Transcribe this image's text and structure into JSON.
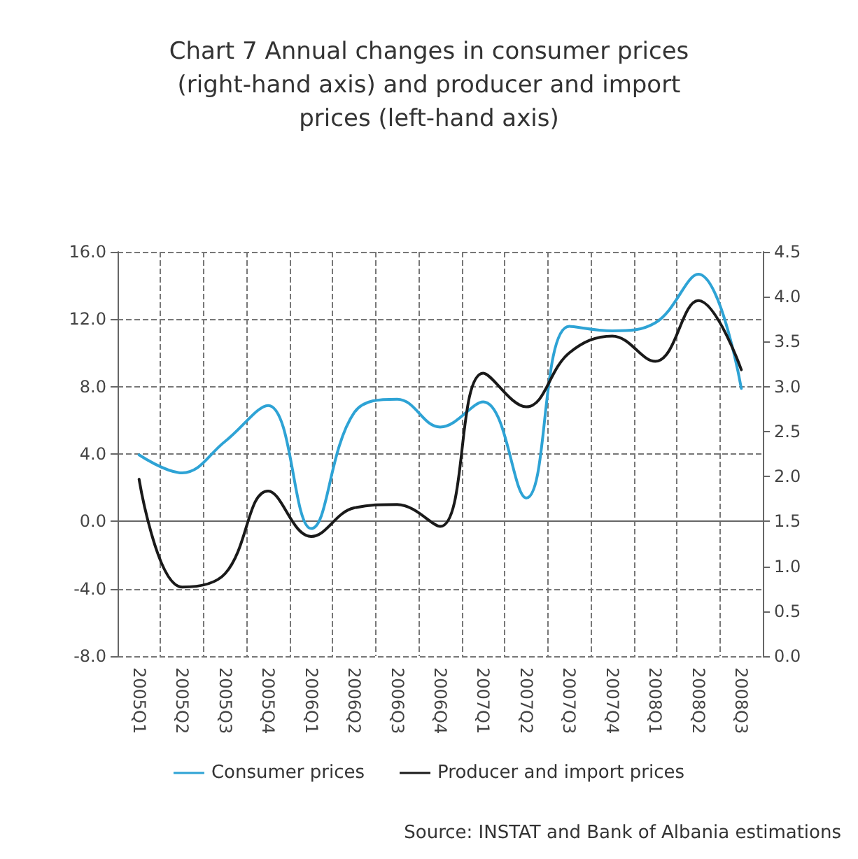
{
  "chart_data": {
    "type": "line",
    "title": "Chart 7 Annual changes in consumer prices\n(right-hand axis) and producer and import\nprices (left-hand axis)",
    "categories": [
      "2005Q1",
      "2005Q2",
      "2005Q3",
      "2005Q4",
      "2006Q1",
      "2006Q2",
      "2006Q3",
      "2006Q4",
      "2007Q1",
      "2007Q2",
      "2007Q3",
      "2007Q4",
      "2008Q1",
      "2008Q2",
      "2008Q3"
    ],
    "series": [
      {
        "name": "Consumer prices",
        "color": "#2ea3d5",
        "axis": "y2",
        "values": [
          2.24,
          2.04,
          2.39,
          2.79,
          1.42,
          2.71,
          2.86,
          2.55,
          2.83,
          1.76,
          3.67,
          3.62,
          3.71,
          4.25,
          2.98
        ]
      },
      {
        "name": "Producer and import prices",
        "color": "#1a1a1a",
        "values": [
          2.5,
          -3.9,
          -3.1,
          1.8,
          -0.9,
          0.8,
          1.0,
          -0.3,
          8.8,
          6.8,
          10.0,
          11.0,
          9.5,
          13.1,
          9.0
        ]
      }
    ],
    "ylim": [
      -8,
      16
    ],
    "yticks": [
      {
        "value": -8,
        "label": "-8.0"
      },
      {
        "value": -4,
        "label": "-4.0"
      },
      {
        "value": 0,
        "label": "0.0"
      },
      {
        "value": 4,
        "label": "4.0"
      },
      {
        "value": 8,
        "label": "8.0"
      },
      {
        "value": 12,
        "label": "12.0"
      },
      {
        "value": 16,
        "label": "16.0"
      }
    ],
    "y2lim": [
      0,
      4.5
    ],
    "y2ticks": [
      {
        "value": 0,
        "label": "0.0"
      },
      {
        "value": 0.5,
        "label": "0.5"
      },
      {
        "value": 1,
        "label": "1.0"
      },
      {
        "value": 1.5,
        "label": "1.5"
      },
      {
        "value": 2,
        "label": "2.0"
      },
      {
        "value": 2.5,
        "label": "2.5"
      },
      {
        "value": 3,
        "label": "3.0"
      },
      {
        "value": 3.5,
        "label": "3.5"
      },
      {
        "value": 4,
        "label": "4.0"
      },
      {
        "value": 4.5,
        "label": "4.5"
      }
    ],
    "grid": true,
    "legend": "bottom",
    "marker": "none",
    "line_style": "solid",
    "annotations": [
      "Source: INSTAT and Bank of Albania estimations"
    ]
  }
}
